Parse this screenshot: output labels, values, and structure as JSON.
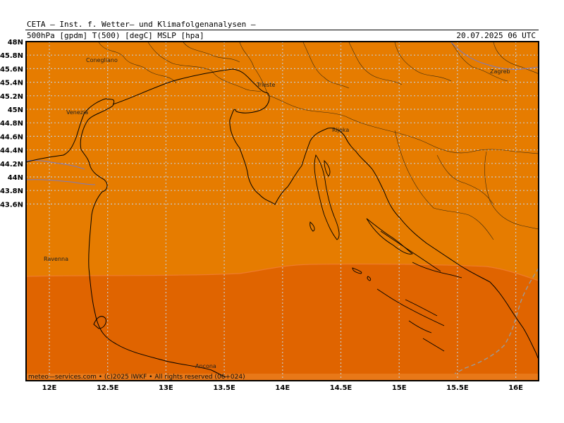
{
  "header": {
    "title": "CETA — Inst. f. Wetter— und Klimafolgenanalysen —",
    "fields": "500hPa [gpdm] T(500) [degC] MSLP [hpa]",
    "valid_time": "20.07.2025 06 UTC"
  },
  "axes": {
    "lat_labels": [
      "48N",
      "45.8N",
      "45.6N",
      "45.4N",
      "45.2N",
      "45N",
      "44.8N",
      "44.6N",
      "44.4N",
      "44.2N",
      "44N",
      "43.8N",
      "43.6N"
    ],
    "lon_labels": [
      "12E",
      "12.5E",
      "13E",
      "13.5E",
      "14E",
      "14.5E",
      "15E",
      "15.5E",
      "16E"
    ],
    "grid": true
  },
  "colors": {
    "field_north": "#e67c00",
    "field_south": "#e06400",
    "field_bottom_strip": "#e87818",
    "coast": "#000000",
    "border": "#3a2a10",
    "river": "#7a7ac0",
    "grid": "#c8c8c8"
  },
  "cities": [
    {
      "name": "Conegliano"
    },
    {
      "name": "Venezia"
    },
    {
      "name": "Trieste"
    },
    {
      "name": "Rijeka"
    },
    {
      "name": "Zagreb"
    },
    {
      "name": "Ravenna"
    },
    {
      "name": "Ancona"
    }
  ],
  "footer": "meteo—services.com • (c)2025 IWKF • All rights reserved (06+024)"
}
